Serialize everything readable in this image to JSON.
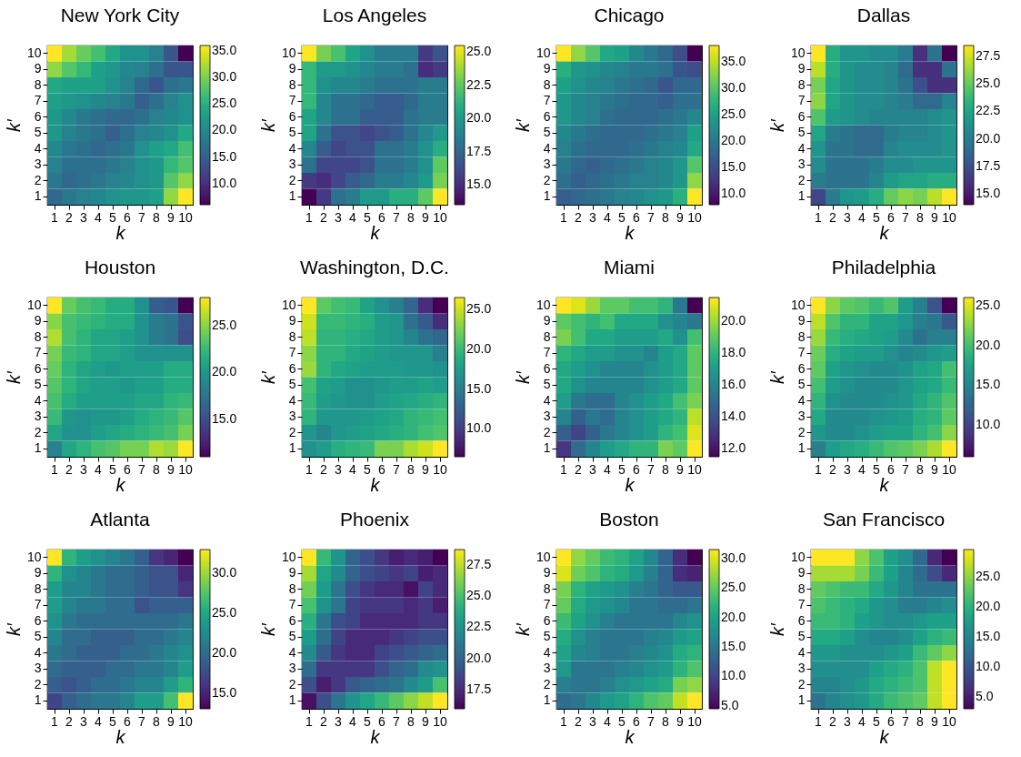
{
  "chart_data": [
    {
      "type": "heatmap",
      "title": "New York City",
      "xlabel": "k",
      "ylabel": "k′",
      "categories": [
        "1",
        "2",
        "3",
        "4",
        "5",
        "6",
        "7",
        "8",
        "9",
        "10"
      ],
      "y_categories": [
        "10",
        "9",
        "8",
        "7",
        "6",
        "5",
        "4",
        "3",
        "2",
        "1"
      ],
      "clim": [
        6,
        36
      ],
      "cticks": [
        {
          "value": 10,
          "label": "10.0"
        },
        {
          "value": 15,
          "label": "15.0"
        },
        {
          "value": 20,
          "label": "20.0"
        },
        {
          "value": 25,
          "label": "25.0"
        },
        {
          "value": 30,
          "label": "30.0"
        },
        {
          "value": 35,
          "label": "35.0"
        }
      ],
      "cells": [
        [
          36,
          32,
          29,
          27,
          24,
          21,
          21,
          19,
          14,
          6
        ],
        [
          31,
          28,
          26,
          23,
          22,
          20,
          19,
          17,
          14,
          14
        ],
        [
          24,
          23,
          23,
          23,
          21,
          19,
          16,
          14,
          17,
          18
        ],
        [
          23,
          22,
          21,
          20,
          19,
          18,
          15,
          17,
          19,
          21
        ],
        [
          22,
          20,
          18,
          17,
          16,
          16,
          17,
          19,
          20,
          21
        ],
        [
          22,
          19,
          18,
          17,
          15,
          17,
          19,
          20,
          21,
          24
        ],
        [
          20,
          18,
          17,
          16,
          17,
          18,
          21,
          23,
          24,
          27
        ],
        [
          19,
          17,
          17,
          17,
          18,
          19,
          21,
          22,
          26,
          28
        ],
        [
          18,
          16,
          17,
          18,
          19,
          20,
          21,
          22,
          28,
          31
        ],
        [
          16,
          18,
          19,
          20,
          21,
          22,
          22,
          23,
          31,
          36
        ]
      ]
    },
    {
      "type": "heatmap",
      "title": "Los Angeles",
      "xlabel": "k",
      "ylabel": "k′",
      "categories": [
        "1",
        "2",
        "3",
        "4",
        "5",
        "6",
        "7",
        "8",
        "9",
        "10"
      ],
      "y_categories": [
        "10",
        "9",
        "8",
        "7",
        "6",
        "5",
        "4",
        "3",
        "2",
        "1"
      ],
      "clim": [
        13.5,
        25.5
      ],
      "cticks": [
        {
          "value": 15,
          "label": "15.0"
        },
        {
          "value": 17.5,
          "label": "17.5"
        },
        {
          "value": 20,
          "label": "20.0"
        },
        {
          "value": 22.5,
          "label": "22.5"
        },
        {
          "value": 25,
          "label": "25.0"
        }
      ],
      "cells": [
        [
          25.5,
          23,
          22,
          20.5,
          19.5,
          18.5,
          18.5,
          18.5,
          15.5,
          16.5
        ],
        [
          21.5,
          20,
          20,
          19.5,
          19,
          18.5,
          18.5,
          18,
          15,
          15.5
        ],
        [
          21.5,
          19.5,
          19,
          19,
          18.5,
          18,
          18,
          18,
          18.5,
          18.5
        ],
        [
          21.5,
          19,
          18,
          18,
          17.5,
          17,
          17,
          17.5,
          18.5,
          18.5
        ],
        [
          20.5,
          19,
          18,
          18,
          17,
          17,
          17,
          18,
          18.5,
          18.5
        ],
        [
          20.5,
          18,
          16.5,
          16.5,
          16,
          16.5,
          17,
          18,
          19,
          20
        ],
        [
          19,
          17,
          16,
          16.5,
          16.5,
          18,
          18,
          18.5,
          19.5,
          21
        ],
        [
          18,
          16,
          16,
          16,
          16.5,
          18,
          18,
          18.5,
          19.5,
          22.5
        ],
        [
          15.5,
          15,
          16,
          17,
          17.5,
          18.5,
          18.5,
          19,
          20,
          23
        ],
        [
          13.5,
          15.5,
          18,
          18.5,
          20,
          20,
          21,
          21,
          22.5,
          25.5
        ]
      ]
    },
    {
      "type": "heatmap",
      "title": "Chicago",
      "xlabel": "k",
      "ylabel": "k′",
      "categories": [
        "1",
        "2",
        "3",
        "4",
        "5",
        "6",
        "7",
        "8",
        "9",
        "10"
      ],
      "y_categories": [
        "10",
        "9",
        "8",
        "7",
        "6",
        "5",
        "4",
        "3",
        "2",
        "1"
      ],
      "clim": [
        8,
        38
      ],
      "cticks": [
        {
          "value": 10,
          "label": "10.0"
        },
        {
          "value": 15,
          "label": "15.0"
        },
        {
          "value": 20,
          "label": "20.0"
        },
        {
          "value": 25,
          "label": "25.0"
        },
        {
          "value": 30,
          "label": "30.0"
        },
        {
          "value": 35,
          "label": "35.0"
        }
      ],
      "cells": [
        [
          38,
          33,
          30,
          26,
          25,
          22,
          20,
          18,
          15,
          8
        ],
        [
          27,
          24,
          23,
          22,
          21,
          20,
          20,
          19,
          16,
          15
        ],
        [
          25,
          23,
          22,
          21,
          20,
          19,
          18,
          16,
          18,
          18
        ],
        [
          24,
          22,
          21,
          20,
          19,
          18,
          18,
          17,
          19,
          19
        ],
        [
          24,
          22,
          21,
          19,
          18,
          18,
          18,
          19,
          20,
          22
        ],
        [
          22,
          20,
          19,
          18,
          18,
          18,
          19,
          20,
          21,
          25
        ],
        [
          21,
          19,
          18,
          18,
          18,
          19,
          20,
          21,
          22,
          26
        ],
        [
          20,
          18,
          17,
          18,
          19,
          20,
          21,
          22,
          24,
          30
        ],
        [
          19,
          17,
          18,
          19,
          20,
          21,
          21,
          22,
          24,
          33
        ],
        [
          17,
          18,
          19,
          20,
          21,
          22,
          23,
          24,
          27,
          38
        ]
      ]
    },
    {
      "type": "heatmap",
      "title": "Dallas",
      "xlabel": "k",
      "ylabel": "k′",
      "categories": [
        "1",
        "2",
        "3",
        "4",
        "5",
        "6",
        "7",
        "8",
        "9",
        "10"
      ],
      "y_categories": [
        "10",
        "9",
        "8",
        "7",
        "6",
        "5",
        "4",
        "3",
        "2",
        "1"
      ],
      "clim": [
        14,
        28.5
      ],
      "cticks": [
        {
          "value": 15,
          "label": "15.0"
        },
        {
          "value": 17.5,
          "label": "17.5"
        },
        {
          "value": 20,
          "label": "20.0"
        },
        {
          "value": 22.5,
          "label": "22.5"
        },
        {
          "value": 25,
          "label": "25.0"
        },
        {
          "value": 27.5,
          "label": "27.5"
        }
      ],
      "cells": [
        [
          28.5,
          23,
          21.5,
          21.5,
          21,
          21,
          20,
          16,
          19.5,
          14
        ],
        [
          27,
          23,
          21.5,
          21,
          21,
          20.5,
          19,
          16,
          16,
          19.5
        ],
        [
          25.5,
          22.5,
          21.5,
          21,
          21,
          20.5,
          19.5,
          17.5,
          16,
          16
        ],
        [
          26,
          22.5,
          21.5,
          21,
          21,
          20.5,
          20,
          19,
          19,
          20.5
        ],
        [
          24.5,
          22,
          21.5,
          21,
          20.5,
          20.5,
          20.5,
          20.5,
          21,
          21.5
        ],
        [
          22.5,
          20,
          19.5,
          19,
          19,
          20,
          20.5,
          20.5,
          21,
          21.5
        ],
        [
          21.5,
          19.5,
          19.5,
          19,
          19,
          20.5,
          21,
          21,
          21,
          21.5
        ],
        [
          21,
          19.5,
          19.5,
          19.5,
          20,
          21,
          21,
          21.5,
          21.5,
          21.5
        ],
        [
          20,
          19.5,
          19.5,
          19.5,
          20.5,
          22,
          22.5,
          22.5,
          23,
          23
        ],
        [
          17,
          20,
          21.5,
          22,
          23,
          25,
          26,
          25.5,
          27,
          28.5
        ]
      ]
    },
    {
      "type": "heatmap",
      "title": "Houston",
      "xlabel": "k",
      "ylabel": "k′",
      "categories": [
        "1",
        "2",
        "3",
        "4",
        "5",
        "6",
        "7",
        "8",
        "9",
        "10"
      ],
      "y_categories": [
        "10",
        "9",
        "8",
        "7",
        "6",
        "5",
        "4",
        "3",
        "2",
        "1"
      ],
      "clim": [
        11,
        28
      ],
      "cticks": [
        {
          "value": 15,
          "label": "15.0"
        },
        {
          "value": 20,
          "label": "20.0"
        },
        {
          "value": 25,
          "label": "25.0"
        }
      ],
      "cells": [
        [
          28,
          24,
          23,
          22.5,
          21.5,
          21.5,
          19.5,
          16,
          15.5,
          11
        ],
        [
          25,
          23,
          22.5,
          22,
          21.5,
          21.5,
          19.5,
          18,
          17.5,
          15.5
        ],
        [
          26,
          23,
          22,
          21,
          21,
          20.5,
          19.5,
          18,
          17.5,
          15
        ],
        [
          24.5,
          22.5,
          22,
          21,
          21,
          20.5,
          19.5,
          19.5,
          19.5,
          19.5
        ],
        [
          24,
          22,
          21,
          20.5,
          20,
          20.5,
          20.5,
          20.5,
          21.5,
          21.5
        ],
        [
          23.5,
          22,
          21,
          20.5,
          20.5,
          20,
          20.5,
          20.5,
          21.5,
          21.5
        ],
        [
          23,
          21.5,
          20.5,
          20.5,
          20.5,
          20.5,
          21,
          21,
          22,
          22.5
        ],
        [
          22.5,
          20,
          19.5,
          20,
          20,
          20.5,
          21.5,
          22,
          22.5,
          23.5
        ],
        [
          21,
          19.5,
          19.5,
          20.5,
          21,
          21.5,
          22,
          22.5,
          23,
          24.5
        ],
        [
          18.5,
          21,
          22,
          23,
          23.5,
          24.5,
          24.5,
          26,
          25.5,
          28
        ]
      ]
    },
    {
      "type": "heatmap",
      "title": "Washington, D.C.",
      "xlabel": "k",
      "ylabel": "k′",
      "categories": [
        "1",
        "2",
        "3",
        "4",
        "5",
        "6",
        "7",
        "8",
        "9",
        "10"
      ],
      "y_categories": [
        "10",
        "9",
        "8",
        "7",
        "6",
        "5",
        "4",
        "3",
        "2",
        "1"
      ],
      "clim": [
        6.5,
        26.5
      ],
      "cticks": [
        {
          "value": 10,
          "label": "10.0"
        },
        {
          "value": 15,
          "label": "15.0"
        },
        {
          "value": 20,
          "label": "20.0"
        },
        {
          "value": 25,
          "label": "25.0"
        }
      ],
      "cells": [
        [
          26.5,
          21.5,
          20.5,
          20,
          18,
          16.5,
          15,
          13,
          9,
          6.5
        ],
        [
          25,
          20,
          20,
          19.5,
          19,
          17.5,
          17,
          14,
          12,
          9
        ],
        [
          24.5,
          19.5,
          19.5,
          19,
          18.5,
          17.5,
          17,
          15.5,
          14,
          13
        ],
        [
          23,
          19.5,
          19.5,
          18.5,
          18,
          17.5,
          17,
          17,
          17,
          15
        ],
        [
          23.5,
          19.5,
          18.5,
          18,
          17.5,
          17.5,
          17.5,
          17,
          17,
          16.5
        ],
        [
          20.5,
          18,
          17.5,
          16.5,
          16.5,
          17,
          17.5,
          17.5,
          18,
          17.5
        ],
        [
          20,
          17.5,
          17,
          16.5,
          16.5,
          17.5,
          18,
          18.5,
          19,
          19.5
        ],
        [
          19.5,
          17,
          17,
          17,
          17.5,
          18,
          18.5,
          19.5,
          20,
          20.5
        ],
        [
          17,
          15.5,
          17,
          17.5,
          18,
          18.5,
          19,
          19.5,
          20.5,
          21
        ],
        [
          16.5,
          17.5,
          19,
          19.5,
          20,
          22.5,
          22.5,
          24,
          25,
          26.5
        ]
      ]
    },
    {
      "type": "heatmap",
      "title": "Miami",
      "xlabel": "k",
      "ylabel": "k′",
      "categories": [
        "1",
        "2",
        "3",
        "4",
        "5",
        "6",
        "7",
        "8",
        "9",
        "10"
      ],
      "y_categories": [
        "10",
        "9",
        "8",
        "7",
        "6",
        "5",
        "4",
        "3",
        "2",
        "1"
      ],
      "clim": [
        11.5,
        21.5
      ],
      "cticks": [
        {
          "value": 12,
          "label": "12.0"
        },
        {
          "value": 14,
          "label": "14.0"
        },
        {
          "value": 16,
          "label": "16.0"
        },
        {
          "value": 18,
          "label": "18.0"
        },
        {
          "value": 20,
          "label": "20.0"
        }
      ],
      "cells": [
        [
          21.5,
          21,
          20,
          19,
          19,
          18.5,
          18.5,
          18,
          15.5,
          11.5
        ],
        [
          19,
          18.5,
          18,
          18.5,
          17.5,
          17.5,
          17.5,
          16.5,
          16,
          15.5
        ],
        [
          19.5,
          18.5,
          17.5,
          17.5,
          17,
          17,
          17,
          17.5,
          16.5,
          18.5
        ],
        [
          18,
          17.5,
          17,
          17,
          16.5,
          16.5,
          16,
          17,
          17.5,
          19
        ],
        [
          17.5,
          17,
          16.5,
          16,
          16,
          16,
          16.5,
          17,
          17.5,
          19
        ],
        [
          17.5,
          16.5,
          16,
          16,
          16,
          16,
          16.5,
          17,
          17.5,
          19
        ],
        [
          17,
          15.5,
          15,
          15,
          16,
          16.5,
          17,
          17.5,
          18.5,
          19.5
        ],
        [
          16,
          14.5,
          15.5,
          15,
          16,
          16.5,
          17,
          17.5,
          18,
          20.5
        ],
        [
          14.5,
          13.5,
          14.5,
          15.5,
          16,
          16.5,
          17,
          18,
          18.5,
          21
        ],
        [
          13,
          15,
          16,
          17,
          17.5,
          18,
          18,
          19.5,
          19,
          21.5
        ]
      ]
    },
    {
      "type": "heatmap",
      "title": "Philadelphia",
      "xlabel": "k",
      "ylabel": "k′",
      "categories": [
        "1",
        "2",
        "3",
        "4",
        "5",
        "6",
        "7",
        "8",
        "9",
        "10"
      ],
      "y_categories": [
        "10",
        "9",
        "8",
        "7",
        "6",
        "5",
        "4",
        "3",
        "2",
        "1"
      ],
      "clim": [
        6,
        26
      ],
      "cticks": [
        {
          "value": 10,
          "label": "10.0"
        },
        {
          "value": 15,
          "label": "15.0"
        },
        {
          "value": 20,
          "label": "20.0"
        },
        {
          "value": 25,
          "label": "25.0"
        }
      ],
      "cells": [
        [
          26,
          22.5,
          21,
          20.5,
          19.5,
          20.5,
          17,
          14.5,
          11,
          6
        ],
        [
          24,
          20.5,
          19,
          19,
          17.5,
          17.5,
          16.5,
          14.5,
          14,
          11.5
        ],
        [
          23,
          19.5,
          18.5,
          18,
          17.5,
          17,
          15.5,
          13.5,
          14.5,
          14.5
        ],
        [
          21.5,
          18.5,
          17.5,
          17,
          17,
          16,
          15,
          15.5,
          16.5,
          17
        ],
        [
          21,
          17.5,
          16.5,
          16,
          15.5,
          15.5,
          16,
          17.5,
          18,
          20
        ],
        [
          20,
          17,
          16,
          15.5,
          15.5,
          15.5,
          16.5,
          17.5,
          18,
          19.5
        ],
        [
          19,
          16,
          15.5,
          15.5,
          15.5,
          16,
          16.5,
          18,
          19,
          20.5
        ],
        [
          18,
          15.5,
          15.5,
          15.5,
          16,
          16.5,
          17,
          18.5,
          19,
          21
        ],
        [
          16.5,
          15.5,
          15.5,
          16,
          17,
          17.5,
          17.5,
          19,
          20,
          22.5
        ],
        [
          14.5,
          17,
          18,
          18.5,
          19.5,
          20.5,
          21,
          22,
          23.5,
          26
        ]
      ]
    },
    {
      "type": "heatmap",
      "title": "Atlanta",
      "xlabel": "k",
      "ylabel": "k′",
      "categories": [
        "1",
        "2",
        "3",
        "4",
        "5",
        "6",
        "7",
        "8",
        "9",
        "10"
      ],
      "y_categories": [
        "10",
        "9",
        "8",
        "7",
        "6",
        "5",
        "4",
        "3",
        "2",
        "1"
      ],
      "clim": [
        13,
        33
      ],
      "cticks": [
        {
          "value": 15,
          "label": "15.0"
        },
        {
          "value": 20,
          "label": "20.0"
        },
        {
          "value": 25,
          "label": "25.0"
        },
        {
          "value": 30,
          "label": "30.0"
        }
      ],
      "cells": [
        [
          33,
          26,
          24,
          23,
          22,
          21,
          19,
          16,
          15,
          13
        ],
        [
          26,
          23,
          22,
          21,
          20,
          20,
          19,
          18,
          18,
          15
        ],
        [
          24,
          22,
          22,
          21,
          20,
          20,
          19,
          18,
          18,
          16
        ],
        [
          24,
          22,
          21,
          21,
          20,
          20,
          18,
          19,
          19,
          19
        ],
        [
          23,
          21,
          20,
          20,
          20,
          20,
          20,
          20,
          20,
          21
        ],
        [
          22,
          20,
          20,
          19,
          19,
          19,
          20,
          20,
          21,
          22
        ],
        [
          21,
          20,
          19,
          19,
          19,
          20,
          20,
          21,
          22,
          23
        ],
        [
          20,
          19,
          19,
          19,
          20,
          20,
          21,
          21,
          22,
          24
        ],
        [
          19,
          18,
          19,
          20,
          20,
          21,
          22,
          22,
          24,
          26
        ],
        [
          17,
          19,
          20,
          21,
          21,
          22,
          24,
          24,
          27,
          33
        ]
      ]
    },
    {
      "type": "heatmap",
      "title": "Phoenix",
      "xlabel": "k",
      "ylabel": "k′",
      "categories": [
        "1",
        "2",
        "3",
        "4",
        "5",
        "6",
        "7",
        "8",
        "9",
        "10"
      ],
      "y_categories": [
        "10",
        "9",
        "8",
        "7",
        "6",
        "5",
        "4",
        "3",
        "2",
        "1"
      ],
      "clim": [
        16,
        28.7
      ],
      "cticks": [
        {
          "value": 17.5,
          "label": "17.5"
        },
        {
          "value": 20,
          "label": "20.0"
        },
        {
          "value": 22.5,
          "label": "22.5"
        },
        {
          "value": 25,
          "label": "25.0"
        },
        {
          "value": 27.5,
          "label": "27.5"
        }
      ],
      "cells": [
        [
          28.7,
          24.5,
          22.5,
          20,
          19,
          18,
          17,
          17.5,
          17,
          16
        ],
        [
          27,
          23.5,
          22,
          20,
          19,
          18.5,
          18,
          18.5,
          17,
          17.5
        ],
        [
          26,
          23,
          21,
          19,
          18,
          17.5,
          17.5,
          16.5,
          18.5,
          17.5
        ],
        [
          25,
          22.5,
          21,
          18.5,
          18,
          18,
          18,
          17.5,
          18,
          17
        ],
        [
          24,
          21,
          19,
          18.5,
          17.5,
          17.5,
          17.5,
          17.5,
          18,
          18
        ],
        [
          23,
          20.5,
          18.5,
          17.5,
          17.5,
          17.5,
          18,
          18.5,
          19,
          19
        ],
        [
          22,
          19.5,
          18,
          17.5,
          17.5,
          18.5,
          19,
          19.5,
          20,
          20.5
        ],
        [
          20.5,
          18,
          18,
          18,
          18,
          19,
          20,
          20.5,
          22,
          22.5
        ],
        [
          19,
          17,
          18,
          19.5,
          20,
          20.5,
          21,
          22,
          23,
          25
        ],
        [
          16.5,
          19,
          21,
          22.5,
          23.5,
          24.5,
          25.5,
          26.5,
          27.5,
          28.7
        ]
      ]
    },
    {
      "type": "heatmap",
      "title": "Boston",
      "xlabel": "k",
      "ylabel": "k′",
      "categories": [
        "1",
        "2",
        "3",
        "4",
        "5",
        "6",
        "7",
        "8",
        "9",
        "10"
      ],
      "y_categories": [
        "10",
        "9",
        "8",
        "7",
        "6",
        "5",
        "4",
        "3",
        "2",
        "1"
      ],
      "clim": [
        4.5,
        31.5
      ],
      "cticks": [
        {
          "value": 5,
          "label": "5.0"
        },
        {
          "value": 10,
          "label": "10.0"
        },
        {
          "value": 15,
          "label": "15.0"
        },
        {
          "value": 20,
          "label": "20.0"
        },
        {
          "value": 25,
          "label": "25.0"
        },
        {
          "value": 30,
          "label": "30.0"
        }
      ],
      "cells": [
        [
          31.5,
          27,
          25,
          23,
          22,
          20,
          17,
          13,
          8,
          4.5
        ],
        [
          30,
          25.5,
          24,
          22,
          21,
          19,
          16,
          13,
          8,
          7
        ],
        [
          26,
          22,
          20,
          19,
          18,
          16,
          15,
          13,
          12,
          12
        ],
        [
          25,
          21,
          19,
          18,
          17,
          15,
          15,
          14,
          14,
          15
        ],
        [
          23,
          20,
          18,
          16,
          15,
          15,
          15,
          15,
          17,
          18
        ],
        [
          21,
          18,
          16,
          15,
          15,
          15,
          16,
          17,
          19,
          20
        ],
        [
          20,
          17,
          16,
          15,
          15,
          16,
          17,
          18,
          21,
          22
        ],
        [
          19,
          15,
          15,
          15,
          16,
          17,
          18,
          19,
          22,
          24
        ],
        [
          16,
          15,
          15,
          16,
          18,
          19,
          20,
          21,
          26,
          27
        ],
        [
          14,
          15,
          17,
          19,
          20,
          22,
          24,
          25,
          29,
          31.5
        ]
      ]
    },
    {
      "type": "heatmap",
      "title": "San Francisco",
      "xlabel": "k",
      "ylabel": "k′",
      "categories": [
        "1",
        "2",
        "3",
        "4",
        "5",
        "6",
        "7",
        "8",
        "9",
        "10"
      ],
      "y_categories": [
        "10",
        "9",
        "8",
        "7",
        "6",
        "5",
        "4",
        "3",
        "2",
        "1"
      ],
      "clim": [
        3,
        29.5
      ],
      "cticks": [
        {
          "value": 5,
          "label": "5.0"
        },
        {
          "value": 10,
          "label": "10.0"
        },
        {
          "value": 15,
          "label": "15.0"
        },
        {
          "value": 20,
          "label": "20.0"
        },
        {
          "value": 25,
          "label": "25.0"
        }
      ],
      "cells": [
        [
          29.5,
          29.5,
          29.5,
          25,
          22,
          18,
          16,
          12,
          6,
          3
        ],
        [
          26,
          26,
          26,
          24,
          21,
          18,
          15,
          12,
          9,
          6
        ],
        [
          23,
          22,
          21,
          21,
          19,
          17,
          15,
          13,
          13,
          13
        ],
        [
          22,
          21,
          20,
          19,
          17,
          16,
          14,
          14,
          15,
          16
        ],
        [
          21,
          21,
          20,
          18,
          17,
          16,
          16,
          17,
          18,
          18
        ],
        [
          19,
          19,
          18,
          16,
          15,
          15,
          16,
          18,
          20,
          21
        ],
        [
          17,
          17,
          16,
          16,
          16,
          17,
          18,
          21,
          23,
          25
        ],
        [
          16,
          16,
          16,
          16,
          18,
          19,
          20,
          22,
          27,
          29.5
        ],
        [
          15,
          15,
          16,
          17,
          19,
          20,
          21,
          22,
          27,
          29.5
        ],
        [
          13,
          15,
          16,
          17,
          19,
          21,
          22,
          23,
          27,
          29.5
        ]
      ]
    }
  ]
}
